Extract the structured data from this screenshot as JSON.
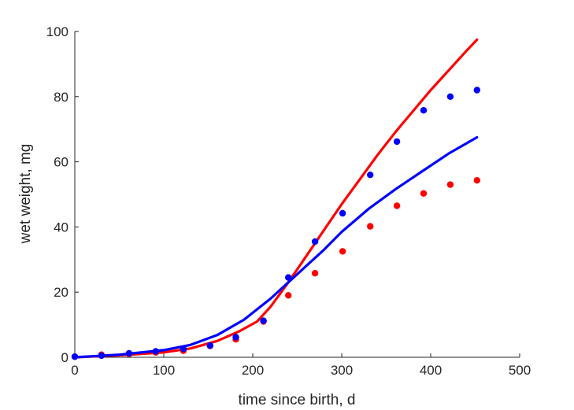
{
  "chart_data": {
    "type": "scatter",
    "xlabel": "time since birth, d",
    "ylabel": "wet weight, mg",
    "xlim": [
      0,
      500
    ],
    "ylim": [
      0,
      100
    ],
    "xticks": [
      "0",
      "100",
      "200",
      "300",
      "400",
      "500"
    ],
    "yticks": [
      "0",
      "20",
      "40",
      "60",
      "80",
      "100"
    ],
    "grid": false,
    "legend": "none",
    "series": [
      {
        "kind": "points",
        "color": "#ff0000",
        "x": [
          0,
          30,
          61,
          91,
          122,
          152,
          181,
          212,
          240,
          270,
          301,
          332,
          362,
          392,
          422,
          452
        ],
        "y": [
          0.2,
          0.8,
          1.0,
          1.5,
          2.0,
          3.5,
          5.5,
          11.0,
          19.0,
          25.8,
          32.5,
          40.2,
          46.5,
          50.3,
          53.0,
          54.3
        ]
      },
      {
        "kind": "points",
        "color": "#0000ff",
        "x": [
          0,
          30,
          61,
          91,
          122,
          152,
          181,
          212,
          240,
          270,
          301,
          332,
          362,
          392,
          422,
          452
        ],
        "y": [
          0.2,
          0.5,
          1.2,
          1.8,
          2.6,
          3.6,
          6.2,
          11.2,
          24.5,
          35.5,
          44.2,
          56.0,
          66.2,
          75.8,
          80.0,
          82.0
        ]
      },
      {
        "kind": "line",
        "color": "#ff0000",
        "x": [
          0,
          50,
          100,
          130,
          160,
          185,
          205,
          220,
          240,
          260,
          280,
          300,
          320,
          340,
          360,
          380,
          400,
          420,
          440,
          452
        ],
        "y": [
          0,
          0.6,
          1.5,
          2.7,
          5.0,
          8.0,
          11.0,
          15.5,
          23.0,
          31.0,
          39.0,
          47.0,
          54.5,
          62.0,
          69.0,
          75.5,
          82.0,
          88.0,
          94.0,
          97.5
        ]
      },
      {
        "kind": "line",
        "color": "#0000ff",
        "x": [
          0,
          50,
          100,
          130,
          160,
          190,
          220,
          250,
          280,
          300,
          330,
          360,
          390,
          420,
          452
        ],
        "y": [
          0,
          0.8,
          2.2,
          3.8,
          6.8,
          11.5,
          18.0,
          25.5,
          33.0,
          38.5,
          45.5,
          51.5,
          57.0,
          62.5,
          67.5
        ]
      }
    ]
  }
}
